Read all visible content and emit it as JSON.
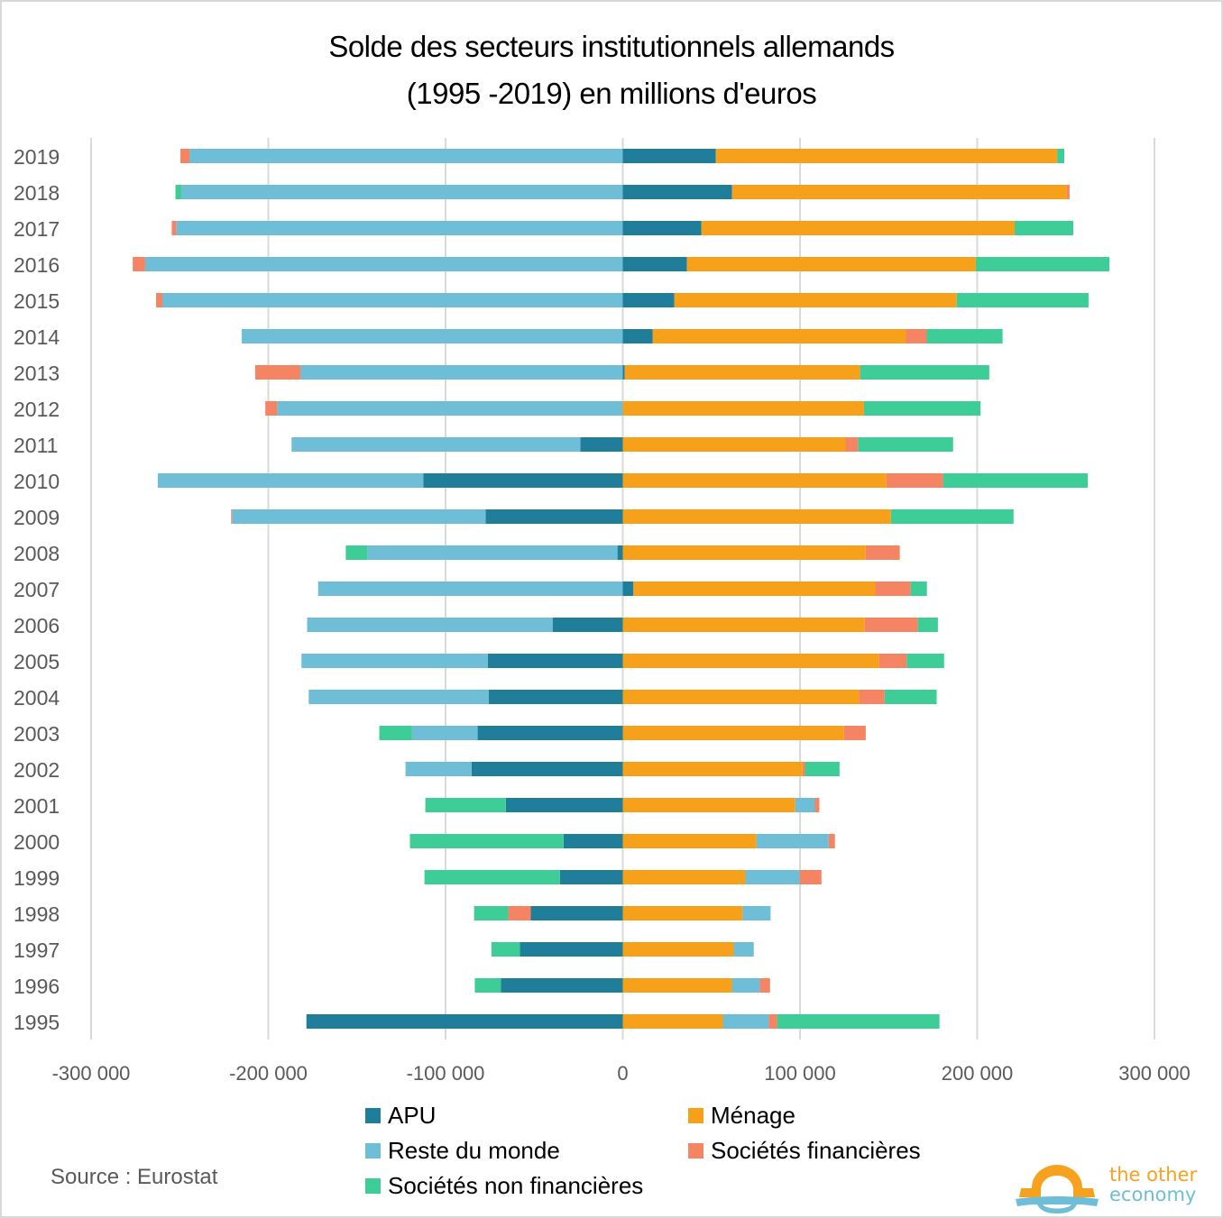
{
  "chart_data": {
    "type": "bar",
    "orientation": "horizontal",
    "stacked": true,
    "title": "Solde des secteurs institutionnels allemands (1995 -2019) en millions d'euros",
    "title_lines": [
      "Solde des secteurs institutionnels allemands",
      "(1995 -2019) en millions d'euros"
    ],
    "xlabel": "",
    "ylabel": "",
    "xlim": [
      -300000,
      300000
    ],
    "xticks": [
      -300000,
      -200000,
      -100000,
      0,
      100000,
      200000,
      300000
    ],
    "xtick_labels": [
      "-300 000",
      "-200 000",
      "-100 000",
      "0",
      "100 000",
      "200 000",
      "300 000"
    ],
    "grid": "vertical",
    "legend_position": "bottom",
    "categories": [
      "2019",
      "2018",
      "2017",
      "2016",
      "2015",
      "2014",
      "2013",
      "2012",
      "2011",
      "2010",
      "2009",
      "2008",
      "2007",
      "2006",
      "2005",
      "2004",
      "2003",
      "2002",
      "2001",
      "2000",
      "1999",
      "1998",
      "1997",
      "1996",
      "1995"
    ],
    "series": [
      {
        "name": "APU",
        "color": "#1f7f9a",
        "values": [
          52500,
          61600,
          44300,
          36200,
          29000,
          16800,
          1000,
          0,
          -23900,
          -112600,
          -77400,
          -3000,
          6000,
          -39600,
          -76200,
          -75700,
          -81900,
          -85300,
          -66000,
          -33400,
          -35500,
          -51900,
          -58000,
          -68700,
          -178500
        ]
      },
      {
        "name": "Ménage",
        "color": "#f7a11a",
        "values": [
          192600,
          189000,
          176800,
          163000,
          159400,
          143000,
          132900,
          136100,
          125700,
          148700,
          151300,
          137000,
          136500,
          136500,
          144600,
          133300,
          124800,
          101400,
          97300,
          75400,
          69200,
          67600,
          62600,
          61600,
          56500
        ]
      },
      {
        "name": "Reste du monde",
        "color": "#6dbed6",
        "values": [
          -244500,
          -249100,
          -252000,
          -269500,
          -259800,
          -215000,
          -181900,
          -195100,
          -163000,
          -149800,
          -143100,
          -141100,
          -171900,
          -138500,
          -105100,
          -101500,
          -37000,
          -37300,
          11100,
          40800,
          30600,
          15800,
          11300,
          15800,
          25900
        ]
      },
      {
        "name": "Sociétés financières",
        "color": "#f58462",
        "values": [
          -5100,
          1500,
          -2500,
          -7000,
          -3500,
          11700,
          -25500,
          -6600,
          7000,
          32000,
          -500,
          19300,
          19900,
          30000,
          15600,
          14400,
          12300,
          1400,
          2500,
          3500,
          12300,
          -12700,
          0,
          5700,
          4700
        ]
      },
      {
        "name": "Sociétés non financières",
        "color": "#3ecd96",
        "values": [
          4000,
          -3300,
          33100,
          75400,
          74400,
          42800,
          72900,
          65700,
          53700,
          81700,
          69200,
          -12200,
          9200,
          11300,
          21100,
          29400,
          -18500,
          19500,
          -45400,
          -86700,
          -76400,
          -19300,
          -16100,
          -14800,
          91600
        ]
      }
    ]
  },
  "legend": {
    "items": [
      {
        "label": "APU",
        "color": "#1f7f9a"
      },
      {
        "label": "Ménage",
        "color": "#f7a11a"
      },
      {
        "label": "Reste du monde",
        "color": "#6dbed6"
      },
      {
        "label": "Sociétés financières",
        "color": "#f58462"
      },
      {
        "label": "Sociétés non financières",
        "color": "#3ecd96"
      }
    ]
  },
  "footer": {
    "source": "Source : Eurostat",
    "logo_line1": "the other",
    "logo_line2": "economy"
  }
}
